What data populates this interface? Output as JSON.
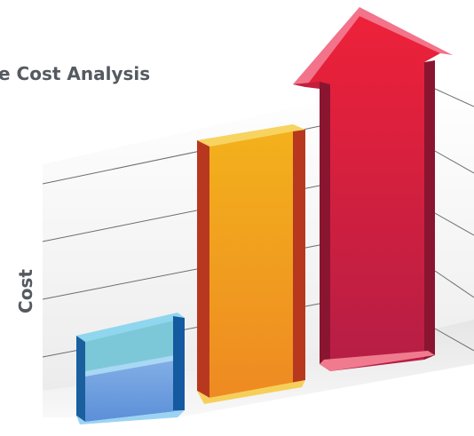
{
  "chart_data": {
    "type": "bar",
    "title": "e Cost Analysis",
    "y_label": "Cost"
  }
}
